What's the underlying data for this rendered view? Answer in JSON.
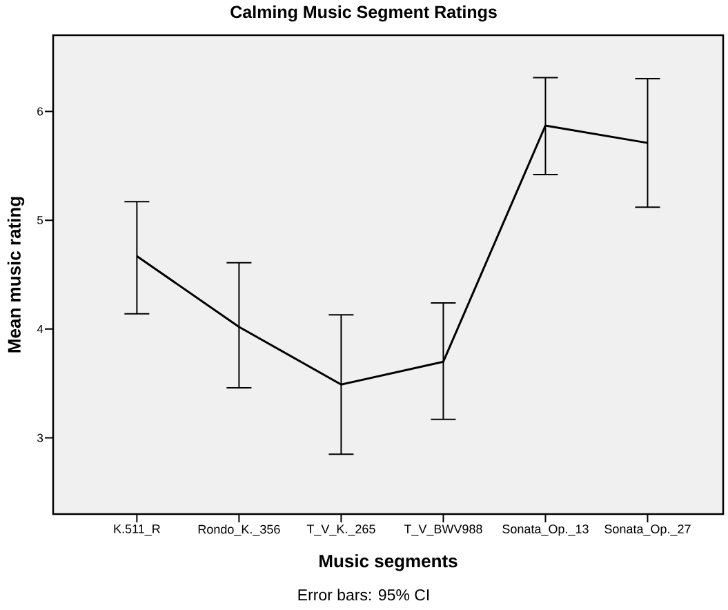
{
  "chart_data": {
    "type": "line",
    "title": "Calming Music Segment Ratings",
    "xlabel": "Music segments",
    "ylabel": "Mean music rating",
    "annotations": [
      "Error bars: 95% CI"
    ],
    "categories": [
      "K.511_R",
      "Rondo_K._356",
      "T_V_K._265",
      "T_V_BWV988",
      "Sonata_Op._13",
      "Sonata_Op._27"
    ],
    "values": [
      4.67,
      4.02,
      3.49,
      3.7,
      5.87,
      5.71
    ],
    "errors": [
      [
        4.14,
        5.17
      ],
      [
        3.46,
        4.61
      ],
      [
        2.85,
        4.13
      ],
      [
        3.17,
        4.24
      ],
      [
        5.42,
        6.31
      ],
      [
        5.12,
        6.3
      ]
    ],
    "color": "#000000",
    "ylim": [
      2.3,
      6.7
    ],
    "yticks": [
      3,
      4,
      5,
      6
    ]
  }
}
